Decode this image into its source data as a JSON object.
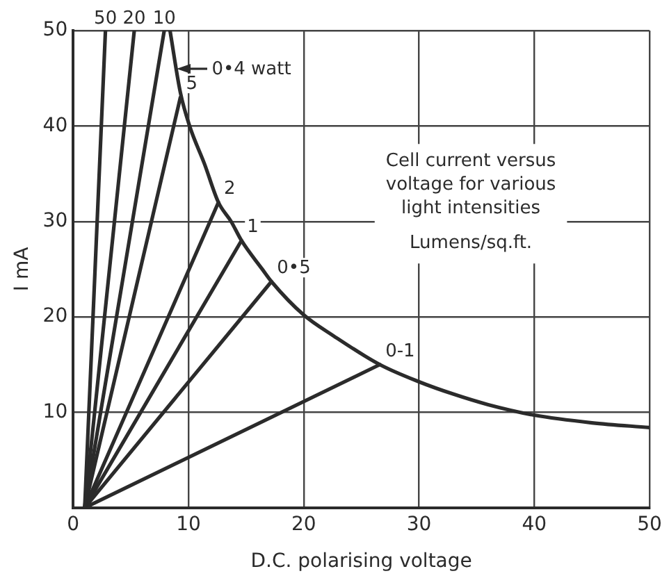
{
  "chart_data": {
    "type": "line",
    "title": "Cell current versus voltage for various light intensities",
    "legend_title": "Lumens/sq.ft.",
    "xlabel": "D.C. polarising voltage",
    "ylabel": "I mA",
    "xlim": [
      0,
      50
    ],
    "ylim": [
      0,
      50
    ],
    "xticks": [
      0,
      10,
      20,
      30,
      40,
      50
    ],
    "yticks": [
      {
        "value": 0,
        "label": null
      },
      10,
      20,
      30,
      40,
      50
    ],
    "grid": true,
    "marker": "none",
    "line_style": "solid",
    "annotations": [
      {
        "text": "0•4 watt",
        "x": 9.0,
        "y": 46
      }
    ],
    "series": [
      {
        "name": "50",
        "color": "#2b2b2b",
        "x": [
          1,
          2.8
        ],
        "values": [
          0,
          50
        ]
      },
      {
        "name": "20",
        "color": "#2b2b2b",
        "x": [
          1,
          5.3
        ],
        "values": [
          0,
          50
        ]
      },
      {
        "name": "10",
        "color": "#2b2b2b",
        "x": [
          1,
          7.9
        ],
        "values": [
          0,
          50
        ]
      },
      {
        "name": "5",
        "color": "#2b2b2b",
        "x": [
          1,
          9.3
        ],
        "values": [
          0,
          43
        ]
      },
      {
        "name": "2",
        "color": "#2b2b2b",
        "x": [
          1,
          12.6
        ],
        "values": [
          0,
          32
        ]
      },
      {
        "name": "1",
        "color": "#2b2b2b",
        "x": [
          1,
          14.6
        ],
        "values": [
          0,
          28
        ]
      },
      {
        "name": "0•5",
        "color": "#2b2b2b",
        "x": [
          1,
          17.2
        ],
        "values": [
          0,
          23.7
        ]
      },
      {
        "name": "0-1",
        "color": "#2b2b2b",
        "x": [
          1,
          26.6
        ],
        "values": [
          0,
          15
        ]
      },
      {
        "color": "#2b2b2b",
        "x": [
          8.4,
          9.3,
          10.1,
          11.4,
          12.6,
          13.7,
          14.6,
          16.4,
          17.2,
          20,
          22.6,
          26.6,
          30,
          33,
          36,
          40,
          45,
          50
        ],
        "values": [
          50,
          43.5,
          40,
          36,
          32,
          30,
          28,
          25,
          23.7,
          20.2,
          18,
          15,
          13.2,
          11.9,
          10.8,
          9.7,
          8.9,
          8.4
        ]
      }
    ]
  }
}
